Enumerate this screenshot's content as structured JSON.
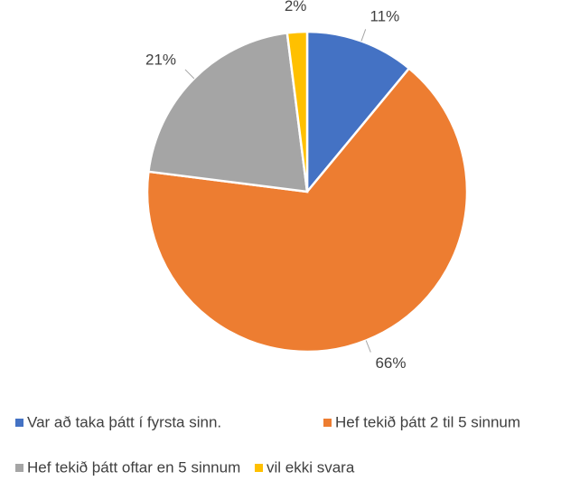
{
  "chart_data": {
    "type": "pie",
    "categories": [
      "Var að taka þátt í fyrsta sinn.",
      "Hef tekið þátt 2 til 5 sinnum",
      "Hef tekið þátt oftar en 5 sinnum",
      "vil ekki svara"
    ],
    "values": [
      11,
      66,
      21,
      2
    ],
    "value_labels": [
      "11%",
      "66%",
      "21%",
      "2%"
    ],
    "colors": [
      "#4472c4",
      "#ed7d31",
      "#a5a5a5",
      "#ffc000"
    ],
    "legend": "bottom"
  }
}
